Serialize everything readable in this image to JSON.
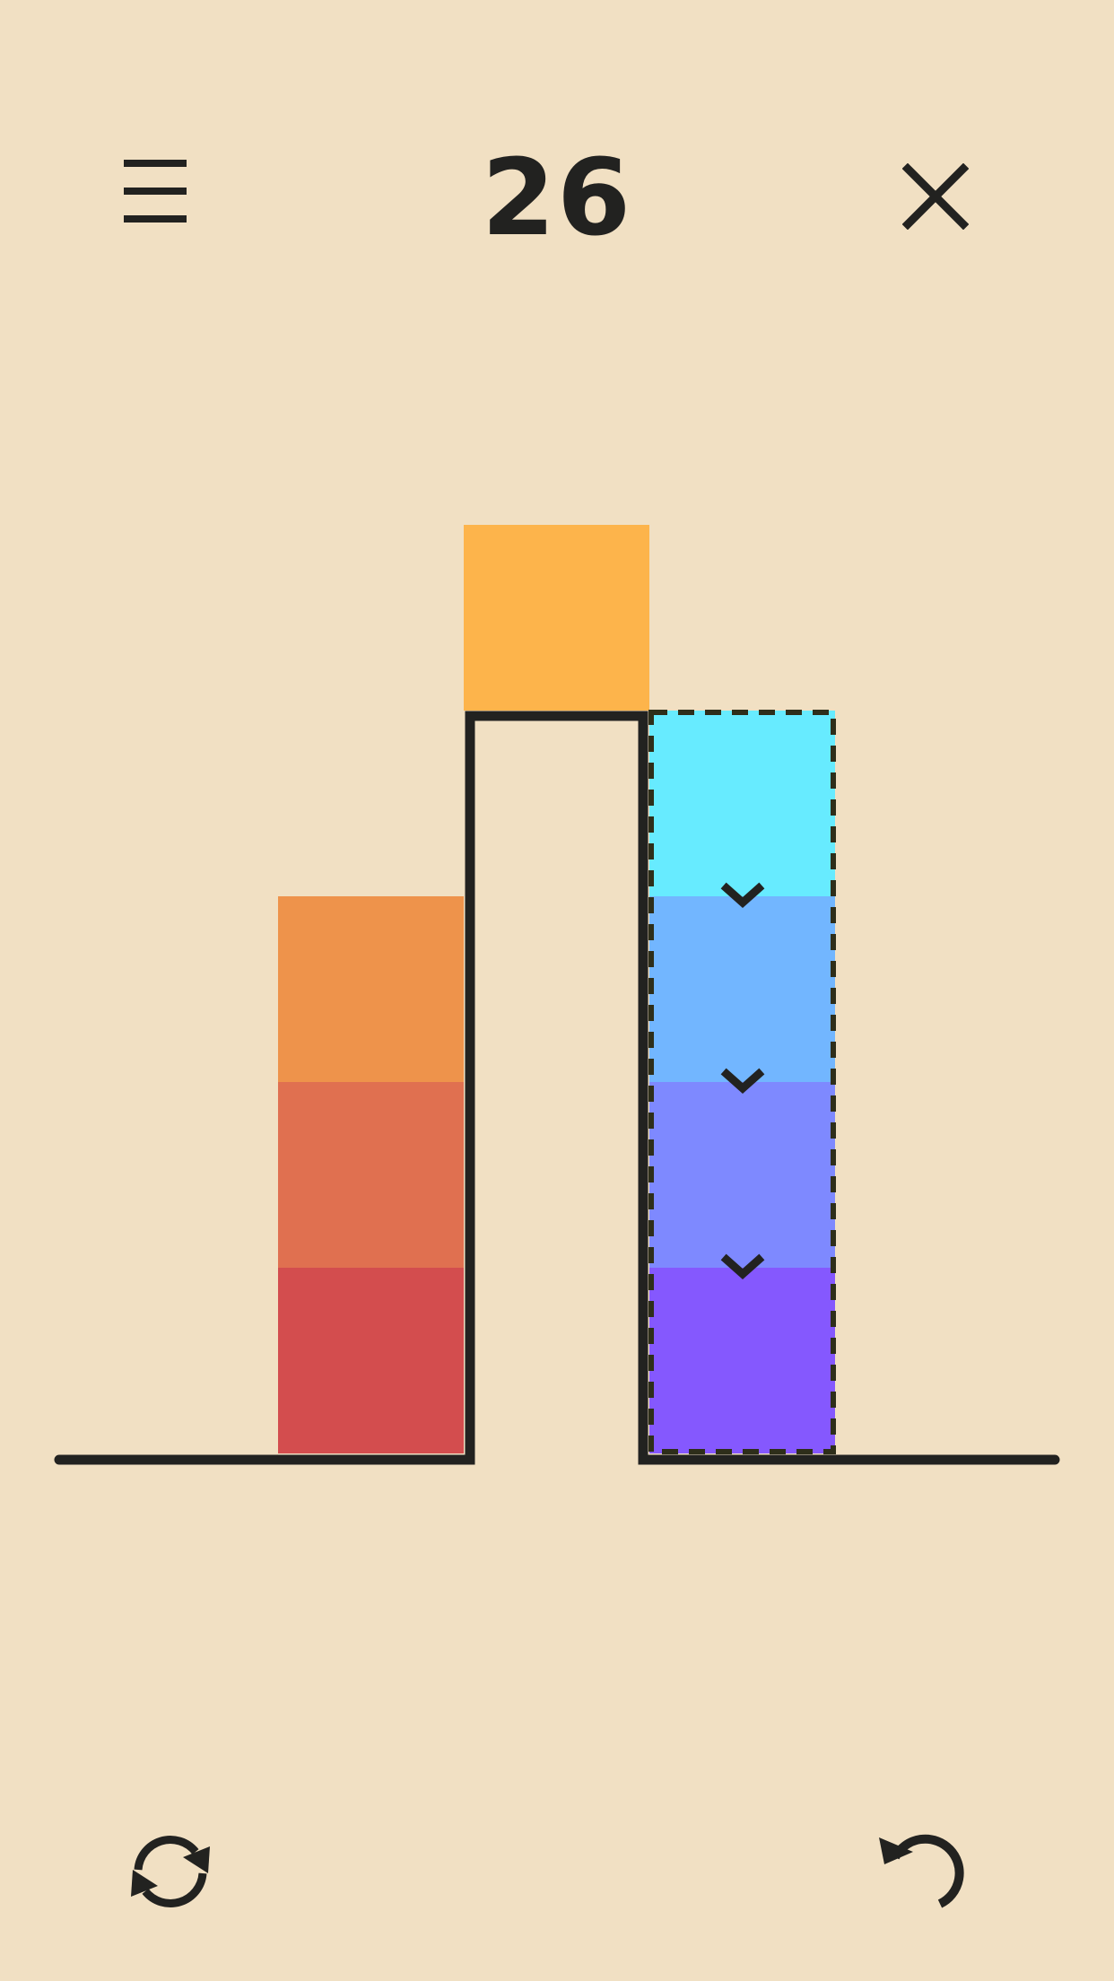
{
  "level": "26",
  "colors": {
    "background": "#F1E0C3",
    "ink": "#222220",
    "yellow": "#FDB44B",
    "orange": "#EE934B",
    "orange_red": "#E07050",
    "red": "#D34D4E",
    "cyan": "#67EBFF",
    "light_blue": "#72B6FF",
    "periwinkle": "#7E89FF",
    "violet": "#8558FE"
  },
  "icons": {
    "menu": "menu-icon",
    "close": "close-icon",
    "restart": "restart-icon",
    "undo": "undo-icon"
  },
  "stacks": [
    {
      "name": "left",
      "blocks": [
        "red",
        "orange_red",
        "orange"
      ]
    },
    {
      "name": "middle-top",
      "blocks": [
        "yellow"
      ]
    },
    {
      "name": "right-selected",
      "selected": true,
      "blocks": [
        "violet",
        "periwinkle",
        "light_blue",
        "cyan"
      ]
    }
  ]
}
